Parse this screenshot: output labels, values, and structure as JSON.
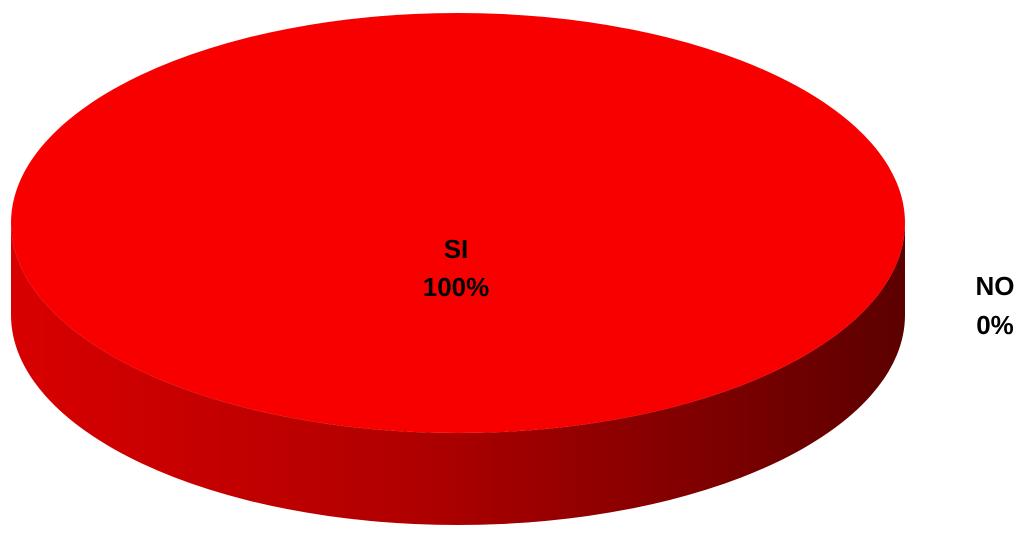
{
  "chart_data": {
    "type": "pie",
    "style": "3d",
    "title": "",
    "slices": [
      {
        "label": "SI",
        "value": 100,
        "percent_label": "100%",
        "color": "#f80000",
        "side_color_light": "#d80000",
        "side_color_dark": "#5c0000"
      },
      {
        "label": "NO",
        "value": 0,
        "percent_label": "0%",
        "color": "#0000f8"
      }
    ],
    "legend": "none",
    "data_labels": "category-and-percent"
  }
}
